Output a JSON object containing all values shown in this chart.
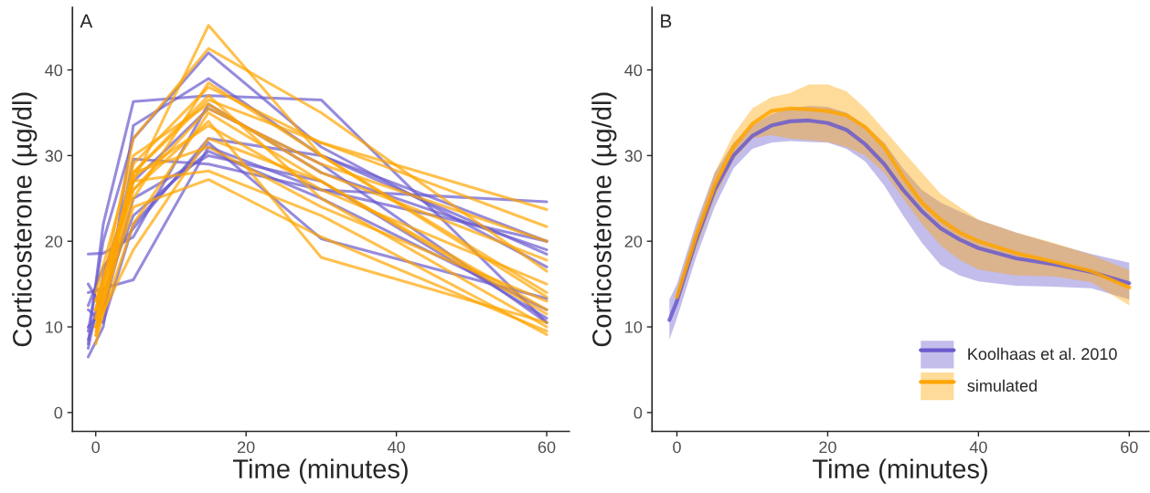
{
  "chart_data": [
    {
      "type": "line",
      "xlabel": "Time (minutes)",
      "ylabel": "Corticosterone (µg/dl)",
      "annotations": [
        "A"
      ],
      "xlim": [
        -3.1,
        63
      ],
      "ylim": [
        -2.2,
        47.3
      ],
      "xticks": [
        0,
        20,
        40,
        60
      ],
      "yticks": [
        0,
        10,
        20,
        30,
        40
      ],
      "grid": false,
      "legend": false,
      "series": [
        {
          "color": "#6a5acd",
          "x": [
            -1,
            1,
            5,
            15,
            30,
            60
          ],
          "values": [
            6.5,
            10,
            33.5,
            39,
            30,
            20
          ]
        },
        {
          "color": "#6a5acd",
          "x": [
            -1,
            1,
            5,
            15,
            30,
            60
          ],
          "values": [
            8,
            22,
            36.3,
            37,
            36.5,
            10.5
          ]
        },
        {
          "color": "#6a5acd",
          "x": [
            -1,
            1,
            5,
            15,
            30,
            60
          ],
          "values": [
            18.5,
            18.6,
            20.5,
            36,
            28,
            19
          ]
        },
        {
          "color": "#6a5acd",
          "x": [
            -1,
            1,
            5,
            15,
            30,
            60
          ],
          "values": [
            14,
            14.5,
            15.5,
            31,
            26,
            24.6
          ]
        },
        {
          "color": "#6a5acd",
          "x": [
            -1,
            1,
            5,
            15,
            30,
            60
          ],
          "values": [
            15,
            12,
            25,
            30,
            27,
            11
          ]
        },
        {
          "color": "#6a5acd",
          "x": [
            -1,
            1,
            5,
            15,
            30,
            60
          ],
          "values": [
            9.5,
            20,
            32,
            42,
            31,
            17
          ]
        },
        {
          "color": "#6a5acd",
          "x": [
            -1,
            1,
            5,
            15,
            30,
            60
          ],
          "values": [
            10,
            12,
            29.6,
            29,
            26,
            20
          ]
        },
        {
          "color": "#6a5acd",
          "x": [
            -1,
            1,
            5,
            15,
            30,
            60
          ],
          "values": [
            12,
            10.5,
            22,
            31.5,
            20.3,
            13.3
          ]
        },
        {
          "color": "#6a5acd",
          "x": [
            -1,
            1,
            5,
            15,
            30,
            60
          ],
          "values": [
            8.5,
            14,
            23,
            30.5,
            25,
            12
          ]
        },
        {
          "color": "#6a5acd",
          "x": [
            -1,
            1,
            5,
            15,
            30,
            60
          ],
          "values": [
            7.5,
            16,
            27,
            35.5,
            29,
            10.5
          ]
        },
        {
          "color": "#6a5acd",
          "x": [
            -1,
            1,
            5,
            15,
            30,
            60
          ],
          "values": [
            12.5,
            17,
            21.5,
            32,
            30,
            18.5
          ]
        },
        {
          "color": "#ffa500",
          "x": [
            0,
            5,
            15,
            30,
            60
          ],
          "values": [
            12,
            27,
            45.2,
            30,
            13.5
          ]
        },
        {
          "color": "#ffa500",
          "x": [
            0,
            5,
            15,
            30,
            60
          ],
          "values": [
            11,
            32,
            42.5,
            35,
            16.5
          ]
        },
        {
          "color": "#ffa500",
          "x": [
            0,
            5,
            15,
            30,
            60
          ],
          "values": [
            9,
            29,
            38,
            31.5,
            21.7
          ]
        },
        {
          "color": "#ffa500",
          "x": [
            0,
            5,
            15,
            30,
            60
          ],
          "values": [
            10,
            28,
            36.5,
            31.5,
            23.7
          ]
        },
        {
          "color": "#ffa500",
          "x": [
            0,
            5,
            15,
            30,
            60
          ],
          "values": [
            13,
            26,
            34,
            18.1,
            10.5
          ]
        },
        {
          "color": "#ffa500",
          "x": [
            0,
            5,
            15,
            30,
            60
          ],
          "values": [
            8,
            27,
            28.2,
            23,
            9.1
          ]
        },
        {
          "color": "#ffa500",
          "x": [
            0,
            5,
            15,
            30,
            60
          ],
          "values": [
            10,
            24,
            27.2,
            20.5,
            9.5
          ]
        },
        {
          "color": "#ffa500",
          "x": [
            0,
            5,
            15,
            30,
            60
          ],
          "values": [
            14,
            30,
            36,
            28,
            17.8
          ]
        },
        {
          "color": "#ffa500",
          "x": [
            0,
            5,
            15,
            30,
            60
          ],
          "values": [
            12,
            27.5,
            33.5,
            26,
            15
          ]
        },
        {
          "color": "#ffa500",
          "x": [
            0,
            5,
            15,
            30,
            60
          ],
          "values": [
            9,
            22,
            35,
            27,
            12
          ]
        },
        {
          "color": "#ffa500",
          "x": [
            0,
            5,
            15,
            30,
            60
          ],
          "values": [
            11,
            25,
            38.5,
            30,
            14
          ]
        },
        {
          "color": "#ffa500",
          "x": [
            0,
            5,
            15,
            30,
            60
          ],
          "values": [
            12,
            28,
            37,
            25,
            10
          ]
        },
        {
          "color": "#ffa500",
          "x": [
            0,
            5,
            15,
            30,
            60
          ],
          "values": [
            10,
            19,
            32,
            27,
            11.5
          ]
        },
        {
          "color": "#ffa500",
          "x": [
            0,
            5,
            15,
            30,
            60
          ],
          "values": [
            13,
            26,
            35.5,
            29,
            20
          ]
        },
        {
          "color": "#ffa500",
          "x": [
            0,
            5,
            15,
            30,
            60
          ],
          "values": [
            9.5,
            28,
            31,
            24,
            13
          ]
        }
      ]
    },
    {
      "type": "line",
      "xlabel": "Time (minutes)",
      "ylabel": "Corticosterone (µg/dl)",
      "annotations": [
        "B"
      ],
      "xlim": [
        -3.3,
        62.6
      ],
      "ylim": [
        -2.2,
        47.3
      ],
      "xticks": [
        0,
        20,
        40,
        60
      ],
      "yticks": [
        0,
        10,
        20,
        30,
        40
      ],
      "grid": false,
      "legend": "bottom right",
      "series": [
        {
          "name": "Koolhaas et al. 2010",
          "color": "#6a5acd",
          "x": [
            -1,
            0,
            2.5,
            5,
            7.5,
            10,
            12.5,
            15,
            17.5,
            20,
            22.5,
            25,
            27.5,
            30,
            32.5,
            35,
            37.5,
            40,
            45,
            50,
            55,
            60
          ],
          "values": [
            10.8,
            13,
            20,
            26,
            30,
            32.3,
            33.5,
            34,
            34.1,
            33.8,
            33,
            31.3,
            29,
            26,
            23.5,
            21.5,
            20.2,
            19.2,
            18,
            17.3,
            16.4,
            15.1
          ],
          "lower": [
            8.5,
            11,
            18,
            24,
            28.5,
            30.8,
            31.5,
            31.7,
            31.6,
            31.5,
            30.8,
            29.3,
            26.5,
            23,
            19.8,
            17.2,
            16,
            15.3,
            14.8,
            14.7,
            14.5,
            13.2
          ],
          "upper": [
            13.2,
            15,
            22,
            28,
            31.5,
            33.5,
            34.8,
            35.5,
            35.8,
            35.7,
            35,
            33.5,
            31.5,
            28.5,
            26,
            24.5,
            23.5,
            22.5,
            21,
            19.7,
            18.5,
            17.5
          ]
        },
        {
          "name": "simulated",
          "color": "#ffa500",
          "x": [
            0,
            2.5,
            5,
            7.5,
            10,
            12.5,
            15,
            17.5,
            20,
            22.5,
            25,
            27.5,
            30,
            32.5,
            35,
            37.5,
            40,
            45,
            50,
            55,
            60
          ],
          "values": [
            13.5,
            20.5,
            26.5,
            31,
            33.7,
            35.2,
            35.5,
            35.4,
            35.2,
            34.7,
            33.3,
            31,
            27.5,
            24.5,
            22.5,
            21,
            20,
            18.6,
            17.6,
            16.5,
            14.6
          ],
          "lower": [
            12.8,
            19,
            25,
            29.5,
            32,
            32.4,
            32,
            31.8,
            31.6,
            31,
            30,
            28,
            25,
            22,
            19.5,
            17.8,
            16.7,
            16,
            15.9,
            15.2,
            12.5
          ],
          "upper": [
            14.3,
            21.5,
            28,
            32.5,
            35.5,
            36.8,
            37.3,
            38.3,
            38.3,
            37.5,
            35.5,
            33,
            30.5,
            28,
            25.5,
            24,
            22.5,
            21,
            19.8,
            18.4,
            16.6
          ]
        }
      ]
    }
  ]
}
